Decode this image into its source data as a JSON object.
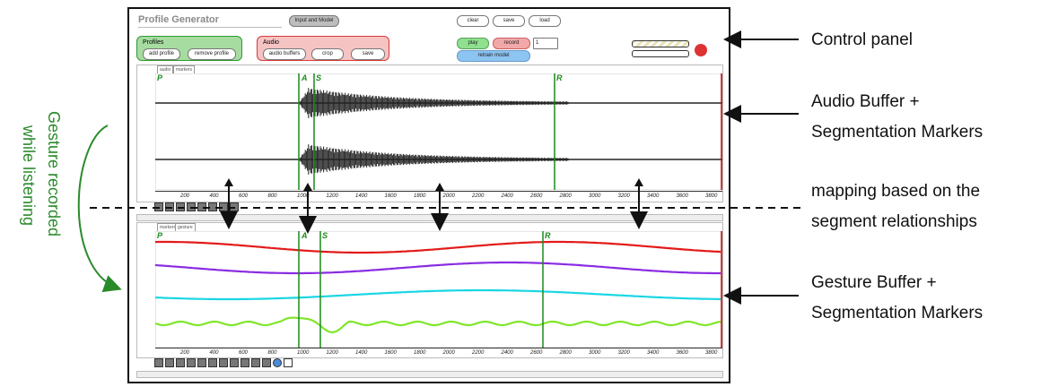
{
  "app": {
    "title": "Profile Generator",
    "mode_button": "Input and Model"
  },
  "toolbar": {
    "clear": "clear",
    "save": "save",
    "load": "load",
    "play": "play",
    "record": "record",
    "record_value": "1",
    "retrain": "retrain model"
  },
  "profiles": {
    "label": "Profiles",
    "add": "add profile",
    "remove": "remove profile"
  },
  "audio": {
    "label": "Audio",
    "buffers": "audio buffers",
    "crop": "crop",
    "save": "save"
  },
  "audio_view": {
    "tabs": [
      "audio",
      "markers"
    ]
  },
  "gesture_view": {
    "tabs": [
      "markers",
      "gesture"
    ]
  },
  "markers": [
    {
      "label": "P"
    },
    {
      "label": "A"
    },
    {
      "label": "S"
    },
    {
      "label": "R"
    }
  ],
  "ruler_ticks": [
    "200",
    "400",
    "600",
    "800",
    "1000",
    "1200",
    "1400",
    "1600",
    "1800",
    "2000",
    "2200",
    "2400",
    "2600",
    "2800",
    "3000",
    "3200",
    "3400",
    "3600",
    "3800"
  ],
  "annotations": {
    "control_panel": "Control panel",
    "audio_buffer": [
      "Audio Buffer +",
      "Segmentation Markers"
    ],
    "mapping": [
      "mapping based on the",
      "segment relationships"
    ],
    "gesture_buffer": [
      "Gesture Buffer  +",
      "Segmentation Markers"
    ],
    "gesture_recorded": [
      "Gesture recorded",
      "while listening"
    ]
  },
  "colors": {
    "marker": "#1a8a1a",
    "gesture_lines": [
      "#e31a1a",
      "#8a2be2",
      "#1ad6e3",
      "#7fe62a"
    ],
    "profiles_bg": "#a6dca0",
    "audio_bg": "#f6c3c3",
    "play_bg": "#8fe08f",
    "record_bg": "#f2a8a8",
    "retrain_bg": "#8cc4f2"
  }
}
